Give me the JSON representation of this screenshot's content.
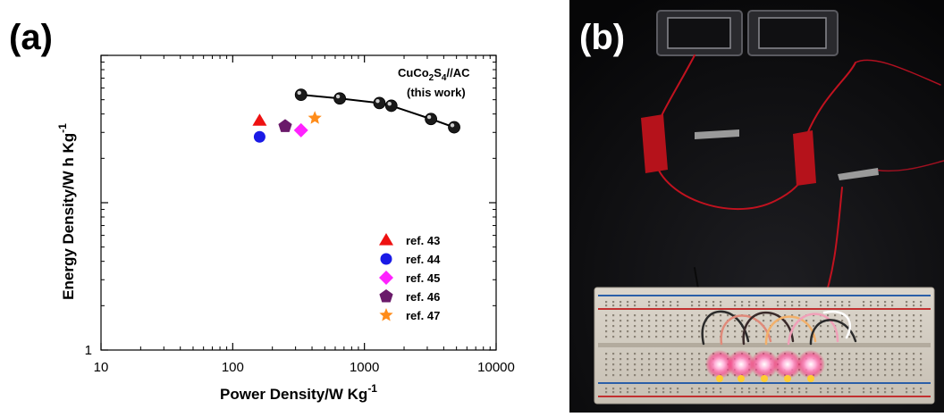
{
  "panels": {
    "a": "(a)",
    "b": "(b)"
  },
  "chart_data": {
    "type": "scatter",
    "xlabel": "Power Density/W Kg",
    "xlabel_sup": "-1",
    "ylabel": "Energy Density/W h Kg",
    "ylabel_sup": "-1",
    "xscale": "log",
    "yscale": "log",
    "xlim": [
      10,
      10000
    ],
    "ylim": [
      1,
      100
    ],
    "xticks": [
      {
        "value": 10,
        "label": "10"
      },
      {
        "value": 100,
        "label": "100"
      },
      {
        "value": 1000,
        "label": "1000"
      },
      {
        "value": 10000,
        "label": "10000"
      }
    ],
    "yticks": [
      {
        "value": 1,
        "label": "1"
      }
    ],
    "series": [
      {
        "label_base": "CuCo",
        "label_sub1": "2",
        "label_mid": "S",
        "label_sub2": "4",
        "label_end": "//AC",
        "label_line2": "(this work)",
        "marker": "sphere",
        "color": "#1a1a1a",
        "connected": true,
        "x": [
          330,
          650,
          1300,
          1600,
          3200,
          4800
        ],
        "y": [
          54,
          51,
          47.5,
          45.5,
          37,
          32.5
        ]
      },
      {
        "name": "ref. 43",
        "marker": "triangle",
        "color": "#ee1111",
        "x": [
          160
        ],
        "y": [
          36
        ]
      },
      {
        "name": "ref. 44",
        "marker": "circle",
        "color": "#1a1ae6",
        "x": [
          160
        ],
        "y": [
          28
        ]
      },
      {
        "name": "ref. 45",
        "marker": "diamond",
        "color": "#ff22ff",
        "x": [
          330
        ],
        "y": [
          31
        ]
      },
      {
        "name": "ref. 46",
        "marker": "pentagon",
        "color": "#6a1a6a",
        "x": [
          250
        ],
        "y": [
          33
        ]
      },
      {
        "name": "ref. 47",
        "marker": "star",
        "color": "#ff8c1a",
        "x": [
          420
        ],
        "y": [
          37.5
        ]
      }
    ],
    "legend_position": "bottom-right"
  }
}
